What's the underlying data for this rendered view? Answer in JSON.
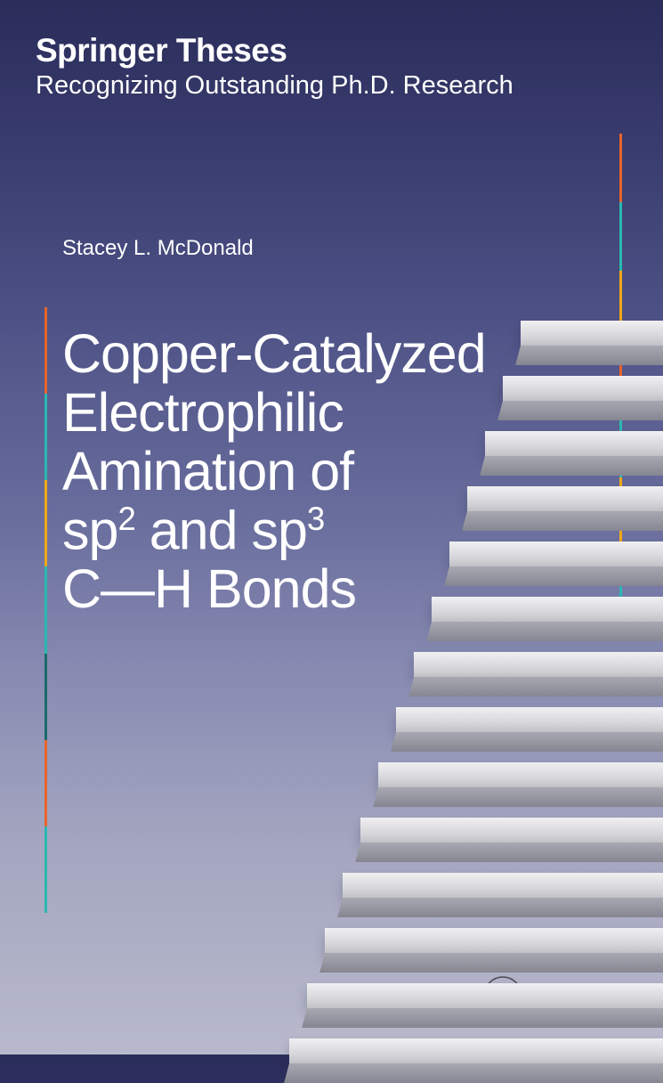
{
  "series": {
    "title": "Springer Theses",
    "subtitle": "Recognizing Outstanding Ph.D. Research"
  },
  "author": "Stacey L. McDonald",
  "title": {
    "line1": "Copper-Catalyzed",
    "line2": "Electrophilic",
    "line3": "Amination of",
    "line4_part1": "sp",
    "line4_sup1": "2",
    "line4_part2": " and sp",
    "line4_sup2": "3",
    "line5": "C—H Bonds"
  },
  "publisher": {
    "name": "Springer"
  },
  "colors": {
    "bg_top": "#2a2d5a",
    "bg_bottom": "#b8b9cc",
    "text": "#ffffff",
    "accent_orange": "#e8642a",
    "accent_teal": "#2bb8b0",
    "accent_yellow": "#f0a818",
    "accent_dark_teal": "#1a6b68",
    "publisher_color": "#4a4a52",
    "step_light": "#f0f0f2",
    "step_dark": "#868692"
  },
  "bar_segments": {
    "left": [
      "#e8642a",
      "#2bb8b0",
      "#f0a818",
      "#2bb8b0",
      "#1a6b68",
      "#e8642a",
      "#2bb8b0"
    ],
    "right": [
      "#e8642a",
      "#2bb8b0",
      "#f0a818",
      "#e8642a",
      "#2bb8b0",
      "#f0a818",
      "#2bb8b0"
    ]
  },
  "steps": {
    "count": 14,
    "base_width": 460,
    "width_decrement": 20,
    "base_bottom": -10,
    "spacing": 62
  }
}
